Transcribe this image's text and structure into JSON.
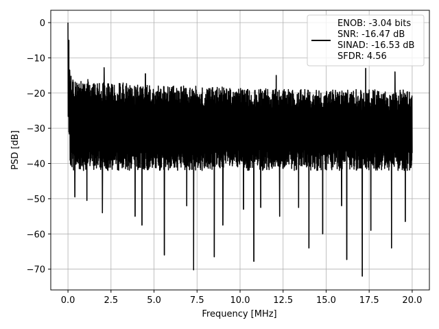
{
  "chart_data": {
    "type": "line",
    "title": "",
    "xlabel": "Frequency [MHz]",
    "ylabel": "PSD [dB]",
    "xlim": [
      -1.0,
      21.0
    ],
    "ylim": [
      -75.9,
      3.5
    ],
    "xticks": [
      0.0,
      2.5,
      5.0,
      7.5,
      10.0,
      12.5,
      15.0,
      17.5,
      20.0
    ],
    "xtick_labels": [
      "0.0",
      "2.5",
      "5.0",
      "7.5",
      "10.0",
      "12.5",
      "15.0",
      "17.5",
      "20.0"
    ],
    "yticks": [
      0,
      -10,
      -20,
      -30,
      -40,
      -50,
      -60,
      -70
    ],
    "ytick_labels": [
      "0",
      "−10",
      "−20",
      "−30",
      "−40",
      "−50",
      "−60",
      "−70"
    ],
    "grid": true,
    "legend_position": "top-right",
    "legend_lines": [
      "ENOB: -3.04 bits",
      "SNR: -16.47 dB",
      "SINAD: -16.53 dB",
      "SFDR: 4.56"
    ],
    "line_color": "#000000",
    "series": [
      {
        "x_range": [
          0.0,
          20.0
        ],
        "envelope": {
          "x": [
            0.0,
            0.1,
            0.3,
            1.0,
            2.0,
            3.0,
            5.0,
            7.5,
            10.0,
            12.5,
            15.0,
            17.5,
            20.0
          ],
          "upper": [
            -5,
            -14,
            -16,
            -16,
            -17,
            -17,
            -18,
            -18,
            -18.5,
            -19,
            -19,
            -19,
            -19
          ],
          "lower": [
            -27,
            -40,
            -42,
            -42,
            -42,
            -42,
            -42,
            -42,
            -42,
            -42,
            -42,
            -42,
            -42
          ]
        },
        "spikes": [
          {
            "x": 0.0,
            "y": 0.0
          },
          {
            "x": 0.05,
            "y": -5.0
          },
          {
            "x": 2.1,
            "y": -12.8
          },
          {
            "x": 5.6,
            "y": -66.0
          },
          {
            "x": 7.3,
            "y": -70.2
          },
          {
            "x": 8.5,
            "y": -66.5
          },
          {
            "x": 10.8,
            "y": -67.8
          },
          {
            "x": 14.0,
            "y": -64.0
          },
          {
            "x": 16.2,
            "y": -67.3
          },
          {
            "x": 17.1,
            "y": -72.0
          },
          {
            "x": 18.8,
            "y": -64.0
          },
          {
            "x": 6.9,
            "y": -52.0
          },
          {
            "x": 2.0,
            "y": -54.0
          },
          {
            "x": 3.9,
            "y": -55.0
          },
          {
            "x": 4.3,
            "y": -57.5
          },
          {
            "x": 9.0,
            "y": -57.5
          },
          {
            "x": 12.3,
            "y": -55.0
          },
          {
            "x": 15.9,
            "y": -52.0
          },
          {
            "x": 19.6,
            "y": -56.5
          },
          {
            "x": 17.6,
            "y": -59.0
          },
          {
            "x": 14.8,
            "y": -60.0
          },
          {
            "x": 10.2,
            "y": -53.0
          },
          {
            "x": 11.2,
            "y": -52.5
          },
          {
            "x": 13.4,
            "y": -52.5
          },
          {
            "x": 1.1,
            "y": -50.5
          },
          {
            "x": 0.4,
            "y": -49.5
          },
          {
            "x": 17.3,
            "y": -13.0
          },
          {
            "x": 19.0,
            "y": -14.0
          },
          {
            "x": 4.5,
            "y": -14.5
          },
          {
            "x": 12.1,
            "y": -15.0
          },
          {
            "x": 0.1,
            "y": -13.5
          }
        ],
        "seed": 7,
        "n_points": 1800
      }
    ]
  }
}
